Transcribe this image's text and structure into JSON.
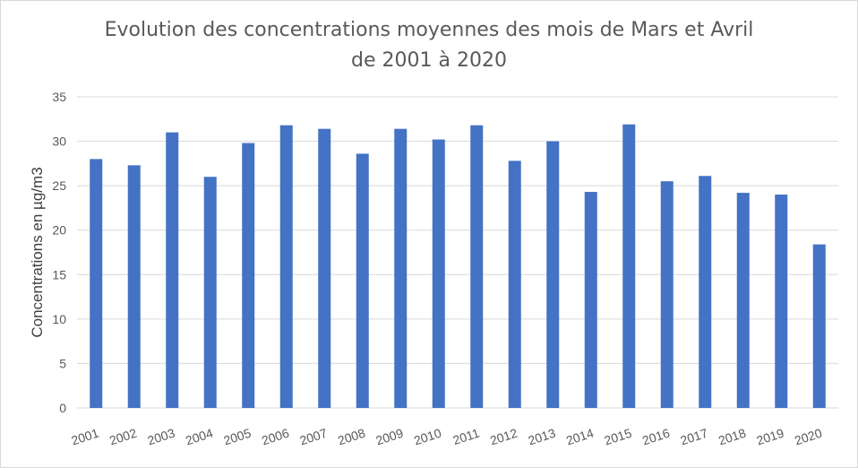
{
  "chart_data": {
    "type": "bar",
    "title_line1": "Evolution des concentrations moyennes des mois de Mars et Avril",
    "title_line2": "de 2001 à 2020",
    "xlabel": "",
    "ylabel": "Concentrations en µg/m3",
    "ylim": [
      0,
      35
    ],
    "yticks": [
      0,
      5,
      10,
      15,
      20,
      25,
      30,
      35
    ],
    "grid": true,
    "legend": "none",
    "bar_color": "#4472c4",
    "categories": [
      "2001",
      "2002",
      "2003",
      "2004",
      "2005",
      "2006",
      "2007",
      "2008",
      "2009",
      "2010",
      "2011",
      "2012",
      "2013",
      "2014",
      "2015",
      "2016",
      "2017",
      "2018",
      "2019",
      "2020"
    ],
    "values": [
      28.0,
      27.3,
      31.0,
      26.0,
      29.8,
      31.8,
      31.4,
      28.6,
      31.4,
      30.2,
      31.8,
      27.8,
      30.0,
      24.3,
      31.9,
      25.5,
      26.1,
      24.2,
      24.0,
      18.4
    ]
  }
}
